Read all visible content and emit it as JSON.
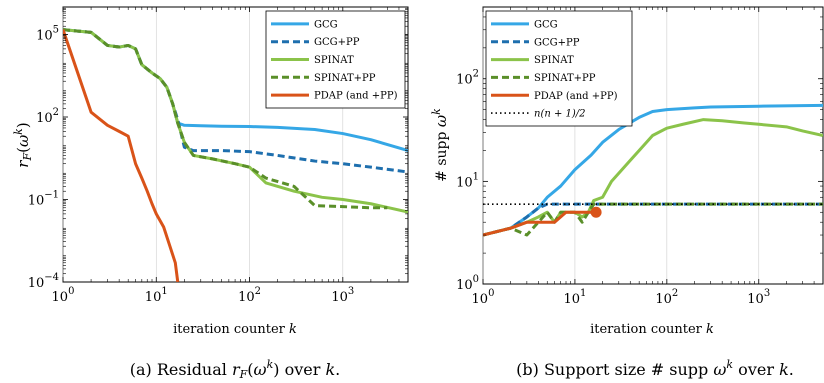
{
  "chart_data": [
    {
      "type": "line",
      "caption": "(a) Residual r_F(ω^k) over k.",
      "caption_parts": {
        "pre": "(a) Residual ",
        "func": "r",
        "func_sub": "F",
        "arg": "ω",
        "arg_sup": "k",
        "post": ") over ",
        "var": "k",
        "end": "."
      },
      "xlabel": "iteration counter k",
      "xlabel_parts": {
        "text": "iteration counter ",
        "var": "k"
      },
      "ylabel": "r_F(ω^k)",
      "xscale": "log",
      "yscale": "log",
      "xlim": [
        1,
        5000
      ],
      "ylim": [
        0.0001,
        1000000
      ],
      "x_ticks": [
        {
          "value": 1,
          "base": "10",
          "exp": "0"
        },
        {
          "value": 10,
          "base": "10",
          "exp": "1"
        },
        {
          "value": 100,
          "base": "10",
          "exp": "2"
        },
        {
          "value": 1000,
          "base": "10",
          "exp": "3"
        }
      ],
      "y_ticks": [
        {
          "value": 0.0001,
          "base": "10",
          "exp": "−4"
        },
        {
          "value": 0.1,
          "base": "10",
          "exp": "−1"
        },
        {
          "value": 100,
          "base": "10",
          "exp": "2"
        },
        {
          "value": 100000,
          "base": "10",
          "exp": "5"
        }
      ],
      "legend_position": "top-right",
      "series": [
        {
          "name": "GCG",
          "color": "#35a7e6",
          "dash": "solid",
          "points": [
            [
              1,
              150000
            ],
            [
              2,
              120000
            ],
            [
              3,
              40000
            ],
            [
              4,
              35000
            ],
            [
              5,
              40000
            ],
            [
              6,
              30000
            ],
            [
              7,
              8000
            ],
            [
              9,
              4000
            ],
            [
              11,
              2500
            ],
            [
              13,
              1200
            ],
            [
              15,
              300
            ],
            [
              17,
              60
            ],
            [
              20,
              50
            ],
            [
              30,
              48
            ],
            [
              50,
              46
            ],
            [
              100,
              45
            ],
            [
              200,
              42
            ],
            [
              500,
              35
            ],
            [
              1000,
              25
            ],
            [
              2000,
              15
            ],
            [
              5000,
              6
            ]
          ]
        },
        {
          "name": "GCG+PP",
          "color": "#1e6fae",
          "dash": "dashed",
          "points": [
            [
              1,
              150000
            ],
            [
              2,
              120000
            ],
            [
              3,
              40000
            ],
            [
              4,
              35000
            ],
            [
              5,
              40000
            ],
            [
              6,
              30000
            ],
            [
              7,
              8000
            ],
            [
              9,
              4000
            ],
            [
              11,
              2500
            ],
            [
              13,
              1200
            ],
            [
              15,
              300
            ],
            [
              17,
              80
            ],
            [
              20,
              8
            ],
            [
              25,
              6
            ],
            [
              50,
              6
            ],
            [
              100,
              5.5
            ],
            [
              200,
              4
            ],
            [
              500,
              2.5
            ],
            [
              1000,
              2
            ],
            [
              2000,
              1.5
            ],
            [
              5000,
              1
            ]
          ]
        },
        {
          "name": "SPINAT",
          "color": "#8bc34a",
          "dash": "solid",
          "points": [
            [
              1,
              150000
            ],
            [
              2,
              120000
            ],
            [
              3,
              40000
            ],
            [
              4,
              35000
            ],
            [
              5,
              40000
            ],
            [
              6,
              30000
            ],
            [
              7,
              8000
            ],
            [
              9,
              4000
            ],
            [
              11,
              2500
            ],
            [
              13,
              1200
            ],
            [
              15,
              300
            ],
            [
              17,
              60
            ],
            [
              20,
              12
            ],
            [
              25,
              4
            ],
            [
              40,
              3
            ],
            [
              70,
              2
            ],
            [
              100,
              1.5
            ],
            [
              150,
              0.4
            ],
            [
              300,
              0.2
            ],
            [
              600,
              0.12
            ],
            [
              1000,
              0.1
            ],
            [
              2000,
              0.07
            ],
            [
              5000,
              0.035
            ]
          ]
        },
        {
          "name": "SPINAT+PP",
          "color": "#5a8f29",
          "dash": "dashed",
          "points": [
            [
              1,
              150000
            ],
            [
              2,
              120000
            ],
            [
              3,
              40000
            ],
            [
              4,
              35000
            ],
            [
              5,
              40000
            ],
            [
              6,
              30000
            ],
            [
              7,
              8000
            ],
            [
              9,
              4000
            ],
            [
              11,
              2500
            ],
            [
              13,
              1200
            ],
            [
              15,
              300
            ],
            [
              17,
              60
            ],
            [
              20,
              12
            ],
            [
              25,
              4
            ],
            [
              40,
              3
            ],
            [
              70,
              2
            ],
            [
              100,
              1.5
            ],
            [
              150,
              0.6
            ],
            [
              300,
              0.3
            ],
            [
              500,
              0.06
            ],
            [
              1000,
              0.055
            ],
            [
              2000,
              0.05
            ],
            [
              3000,
              0.05
            ]
          ]
        },
        {
          "name": "PDAP (and +PP)",
          "color": "#d95319",
          "dash": "solid",
          "points": [
            [
              1,
              150000
            ],
            [
              2,
              150
            ],
            [
              3,
              50
            ],
            [
              4,
              30
            ],
            [
              5,
              20
            ],
            [
              6,
              2
            ],
            [
              7,
              0.6
            ],
            [
              8,
              0.2
            ],
            [
              9,
              0.07
            ],
            [
              10,
              0.03
            ],
            [
              12,
              0.01
            ],
            [
              14,
              0.002
            ],
            [
              16,
              0.0005
            ],
            [
              17,
              0.0001
            ]
          ]
        }
      ]
    },
    {
      "type": "line",
      "caption": "(b) Support size # supp ω^k over k.",
      "caption_parts": {
        "pre": "(b) Support size # supp ",
        "arg": "ω",
        "arg_sup": "k",
        "post": " over ",
        "var": "k",
        "end": "."
      },
      "xlabel": "iteration counter k",
      "xlabel_parts": {
        "text": "iteration counter ",
        "var": "k"
      },
      "ylabel": "# supp ω^k",
      "xscale": "log",
      "yscale": "log",
      "xlim": [
        1,
        5000
      ],
      "ylim": [
        1,
        500
      ],
      "x_ticks": [
        {
          "value": 1,
          "base": "10",
          "exp": "0"
        },
        {
          "value": 10,
          "base": "10",
          "exp": "1"
        },
        {
          "value": 100,
          "base": "10",
          "exp": "2"
        },
        {
          "value": 1000,
          "base": "10",
          "exp": "3"
        }
      ],
      "y_ticks": [
        {
          "value": 1,
          "base": "10",
          "exp": "0"
        },
        {
          "value": 10,
          "base": "10",
          "exp": "1"
        },
        {
          "value": 100,
          "base": "10",
          "exp": "2"
        }
      ],
      "legend_position": "top-left",
      "series": [
        {
          "name": "GCG",
          "color": "#35a7e6",
          "dash": "solid",
          "points": [
            [
              1,
              3
            ],
            [
              2,
              3.5
            ],
            [
              3,
              4.5
            ],
            [
              4,
              5.5
            ],
            [
              5,
              7
            ],
            [
              7,
              9
            ],
            [
              10,
              13
            ],
            [
              15,
              18
            ],
            [
              20,
              24
            ],
            [
              30,
              32
            ],
            [
              50,
              42
            ],
            [
              70,
              48
            ],
            [
              100,
              50
            ],
            [
              200,
              52
            ],
            [
              300,
              53
            ],
            [
              1000,
              54
            ],
            [
              5000,
              55
            ]
          ]
        },
        {
          "name": "GCG+PP",
          "color": "#1e6fae",
          "dash": "dashed",
          "points": [
            [
              1,
              3
            ],
            [
              2,
              3.5
            ],
            [
              3,
              4.5
            ],
            [
              4,
              5.5
            ],
            [
              5,
              6
            ],
            [
              5000,
              6
            ]
          ]
        },
        {
          "name": "SPINAT",
          "color": "#8bc34a",
          "dash": "solid",
          "points": [
            [
              1,
              3
            ],
            [
              2,
              3.5
            ],
            [
              3,
              4
            ],
            [
              4,
              4.5
            ],
            [
              5,
              5
            ],
            [
              6,
              4
            ],
            [
              7,
              5
            ],
            [
              10,
              5
            ],
            [
              12,
              4.5
            ],
            [
              14,
              5
            ],
            [
              16,
              6.5
            ],
            [
              20,
              7
            ],
            [
              25,
              10
            ],
            [
              30,
              12
            ],
            [
              40,
              16
            ],
            [
              50,
              20
            ],
            [
              70,
              28
            ],
            [
              100,
              33
            ],
            [
              150,
              36
            ],
            [
              250,
              40
            ],
            [
              400,
              39
            ],
            [
              700,
              37
            ],
            [
              1000,
              36
            ],
            [
              2000,
              34
            ],
            [
              3000,
              31
            ],
            [
              5000,
              28
            ]
          ]
        },
        {
          "name": "SPINAT+PP",
          "color": "#5a8f29",
          "dash": "dashed",
          "points": [
            [
              1,
              3
            ],
            [
              2,
              3.5
            ],
            [
              3,
              3
            ],
            [
              4,
              4
            ],
            [
              5,
              5
            ],
            [
              6,
              4
            ],
            [
              7,
              5
            ],
            [
              10,
              5
            ],
            [
              12,
              4
            ],
            [
              14,
              5
            ],
            [
              16,
              6
            ],
            [
              5000,
              6
            ]
          ]
        },
        {
          "name": "PDAP (and +PP)",
          "color": "#d95319",
          "dash": "solid",
          "points": [
            [
              1,
              3
            ],
            [
              2,
              3.5
            ],
            [
              3,
              4
            ],
            [
              5,
              4
            ],
            [
              6,
              4
            ],
            [
              8,
              5
            ],
            [
              10,
              5
            ],
            [
              12,
              5
            ],
            [
              14,
              5
            ],
            [
              16,
              5
            ],
            [
              17,
              5
            ]
          ]
        },
        {
          "name": "n(n + 1)/2",
          "color": "#000000",
          "dash": "dotted",
          "points": [
            [
              1,
              6
            ],
            [
              5000,
              6
            ]
          ]
        }
      ]
    }
  ]
}
